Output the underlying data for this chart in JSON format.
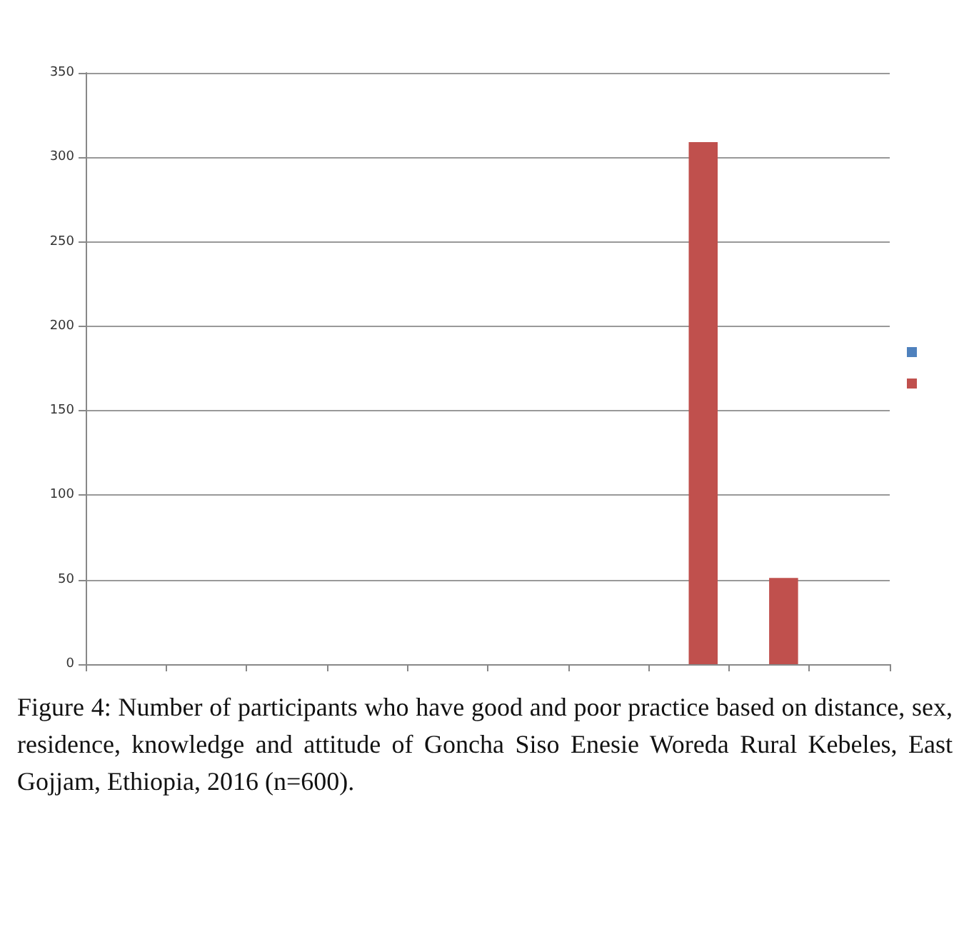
{
  "chart_data": {
    "type": "bar",
    "categories": [
      null,
      null,
      null,
      null,
      null,
      null,
      null,
      null,
      null,
      null
    ],
    "series": [
      {
        "color": "#4f81bd",
        "values": [
          null,
          null,
          null,
          null,
          null,
          null,
          null,
          null,
          null,
          null
        ]
      },
      {
        "color": "#c0504d",
        "values": [
          null,
          null,
          null,
          null,
          null,
          null,
          null,
          309,
          51,
          null
        ]
      }
    ],
    "ylim": [
      0,
      350
    ],
    "yticks": [
      0,
      50,
      100,
      150,
      200,
      250,
      300,
      350
    ],
    "grid": "y",
    "annotations": [
      "Figure 4: Number of participants who have good and poor practice based on distance, sex, residence, knowledge and attitude of Goncha Siso Enesie Woreda Rural Kebeles, East Gojjam, Ethiopia, 2016 (n=600)."
    ]
  }
}
